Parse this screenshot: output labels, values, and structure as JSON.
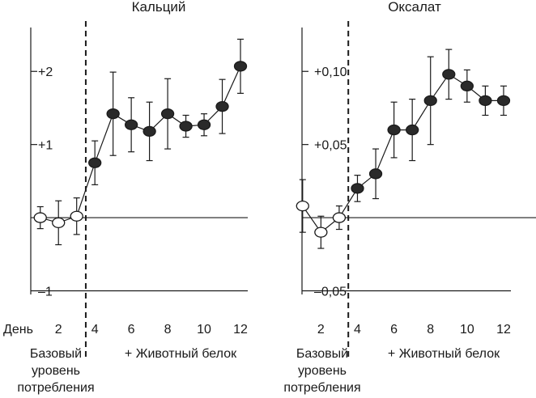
{
  "chart_data": [
    {
      "type": "line",
      "title": "Кальций",
      "xlabel": "День",
      "ylabel": "",
      "x_ticks": [
        "2",
        "4",
        "6",
        "8",
        "10",
        "12"
      ],
      "y_ticks": [
        "+2",
        "+1",
        "–1"
      ],
      "xlim": [
        0.3,
        12.4
      ],
      "ylim": [
        -1.05,
        2.6
      ],
      "grid": false,
      "baseline_end_day": 3.5,
      "series": [
        {
          "points": [
            {
              "x": 1,
              "y": 0.0,
              "err": 0.15,
              "phase": "baseline"
            },
            {
              "x": 2,
              "y": -0.07,
              "err": 0.3,
              "phase": "baseline"
            },
            {
              "x": 3,
              "y": 0.02,
              "err": 0.25,
              "phase": "baseline"
            },
            {
              "x": 4,
              "y": 0.75,
              "err": 0.3,
              "phase": "protein"
            },
            {
              "x": 5,
              "y": 1.42,
              "err": 0.57,
              "phase": "protein"
            },
            {
              "x": 6,
              "y": 1.27,
              "err": 0.37,
              "phase": "protein"
            },
            {
              "x": 7,
              "y": 1.18,
              "err": 0.4,
              "phase": "protein"
            },
            {
              "x": 8,
              "y": 1.42,
              "err": 0.48,
              "phase": "protein"
            },
            {
              "x": 9,
              "y": 1.25,
              "err": 0.15,
              "phase": "protein"
            },
            {
              "x": 10,
              "y": 1.27,
              "err": 0.15,
              "phase": "protein"
            },
            {
              "x": 11,
              "y": 1.52,
              "err": 0.37,
              "phase": "protein"
            },
            {
              "x": 12,
              "y": 2.07,
              "err": 0.37,
              "phase": "protein"
            }
          ]
        }
      ]
    },
    {
      "type": "line",
      "title": "Оксалат",
      "xlabel": "",
      "ylabel": "",
      "x_ticks": [
        "2",
        "4",
        "6",
        "8",
        "10",
        "12"
      ],
      "y_ticks": [
        "+0,10",
        "+0,05",
        "–0,05"
      ],
      "xlim": [
        0.3,
        12.4
      ],
      "ylim": [
        -0.0525,
        0.13
      ],
      "grid": false,
      "baseline_end_day": 3.5,
      "series": [
        {
          "points": [
            {
              "x": 1,
              "y": 0.008,
              "err": 0.018,
              "phase": "baseline"
            },
            {
              "x": 2,
              "y": -0.01,
              "err": 0.011,
              "phase": "baseline"
            },
            {
              "x": 3,
              "y": 0.0,
              "err": 0.008,
              "phase": "baseline"
            },
            {
              "x": 4,
              "y": 0.02,
              "err": 0.009,
              "phase": "protein"
            },
            {
              "x": 5,
              "y": 0.03,
              "err": 0.017,
              "phase": "protein"
            },
            {
              "x": 6,
              "y": 0.06,
              "err": 0.019,
              "phase": "protein"
            },
            {
              "x": 7,
              "y": 0.06,
              "err": 0.021,
              "phase": "protein"
            },
            {
              "x": 8,
              "y": 0.08,
              "err": 0.03,
              "phase": "protein"
            },
            {
              "x": 9,
              "y": 0.098,
              "err": 0.017,
              "phase": "protein"
            },
            {
              "x": 10,
              "y": 0.09,
              "err": 0.011,
              "phase": "protein"
            },
            {
              "x": 11,
              "y": 0.08,
              "err": 0.01,
              "phase": "protein"
            },
            {
              "x": 12,
              "y": 0.08,
              "err": 0.01,
              "phase": "protein"
            }
          ]
        }
      ]
    }
  ],
  "annotations": {
    "baseline": [
      "Базовый",
      "уровень",
      "потребления"
    ],
    "protein": "+ Животный белок"
  }
}
